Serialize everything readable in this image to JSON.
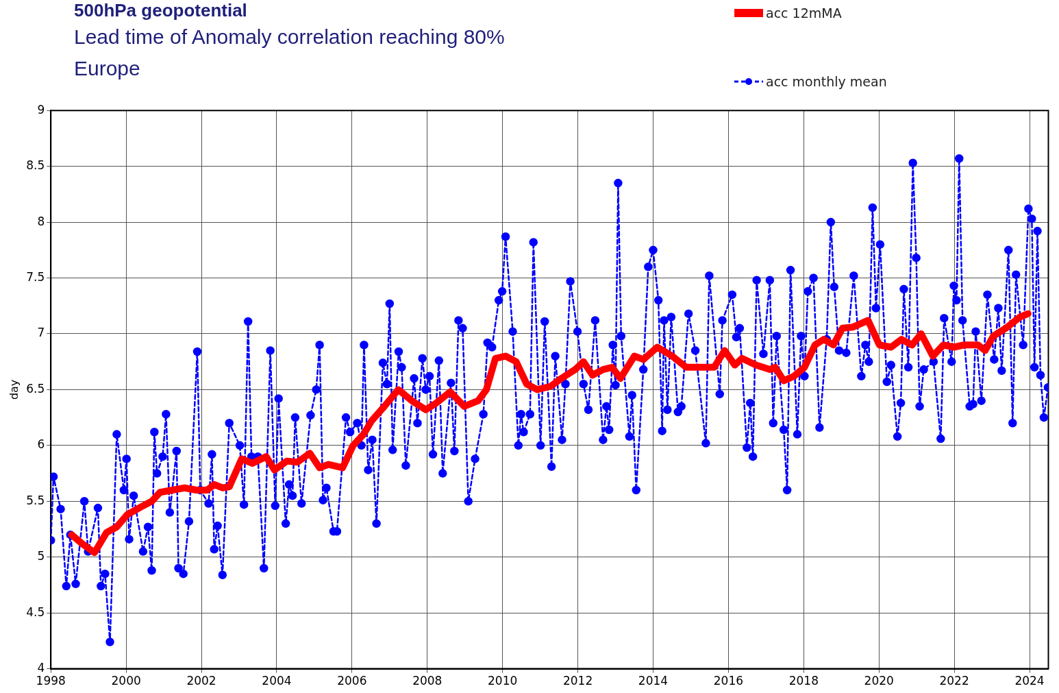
{
  "chart_data": {
    "type": "line",
    "title": "500hPa geopotential",
    "subtitle": "Lead time of Anomaly correlation reaching 80%\nEurope",
    "ylabel": "day",
    "xlim": [
      1998,
      2024.5
    ],
    "xticks": [
      1998,
      2000,
      2002,
      2004,
      2006,
      2008,
      2010,
      2012,
      2014,
      2016,
      2018,
      2020,
      2022,
      2024
    ],
    "ylim": [
      4,
      9
    ],
    "yticks": [
      4,
      4.5,
      5,
      5.5,
      6,
      6.5,
      7,
      7.5,
      8,
      8.5,
      9
    ],
    "grid": true,
    "legend": "top right",
    "series": [
      {
        "name": "acc 12mMA",
        "color": "#ff0000",
        "line_style": "solid",
        "marker": "none",
        "x": [
          1998.55,
          1998.83,
          1999.16,
          1999.48,
          1999.75,
          2000.03,
          2000.4,
          2000.68,
          2000.9,
          2001.23,
          2001.55,
          2001.87,
          2002.15,
          2002.34,
          2002.56,
          2002.74,
          2003.07,
          2003.35,
          2003.72,
          2003.94,
          2004.27,
          2004.55,
          2004.88,
          2005.14,
          2005.38,
          2005.75,
          2006.03,
          2006.31,
          2006.52,
          2006.86,
          2007.23,
          2007.59,
          2007.96,
          2008.24,
          2008.61,
          2008.98,
          2009.35,
          2009.57,
          2009.81,
          2010.08,
          2010.36,
          2010.64,
          2010.92,
          2011.28,
          2011.56,
          2011.93,
          2012.15,
          2012.39,
          2012.67,
          2012.91,
          2013.13,
          2013.5,
          2013.74,
          2014.11,
          2014.51,
          2014.88,
          2015.16,
          2015.62,
          2015.9,
          2016.17,
          2016.36,
          2016.73,
          2017.1,
          2017.24,
          2017.47,
          2017.74,
          2018.02,
          2018.3,
          2018.53,
          2018.79,
          2019.03,
          2019.31,
          2019.71,
          2020.01,
          2020.32,
          2020.6,
          2020.88,
          2021.12,
          2021.43,
          2021.71,
          2021.99,
          2022.26,
          2022.63,
          2022.82,
          2023.04,
          2023.37,
          2023.74,
          2023.96
        ],
        "values": [
          5.2,
          5.12,
          5.04,
          5.22,
          5.27,
          5.38,
          5.45,
          5.5,
          5.58,
          5.6,
          5.62,
          5.6,
          5.6,
          5.65,
          5.62,
          5.63,
          5.88,
          5.84,
          5.9,
          5.78,
          5.86,
          5.85,
          5.93,
          5.8,
          5.83,
          5.8,
          6.0,
          6.1,
          6.22,
          6.35,
          6.5,
          6.4,
          6.32,
          6.38,
          6.48,
          6.35,
          6.4,
          6.5,
          6.78,
          6.8,
          6.75,
          6.55,
          6.5,
          6.53,
          6.6,
          6.68,
          6.75,
          6.63,
          6.68,
          6.7,
          6.6,
          6.8,
          6.77,
          6.88,
          6.8,
          6.7,
          6.7,
          6.7,
          6.85,
          6.72,
          6.78,
          6.72,
          6.68,
          6.7,
          6.58,
          6.62,
          6.7,
          6.9,
          6.95,
          6.9,
          7.05,
          7.06,
          7.12,
          6.9,
          6.88,
          6.95,
          6.9,
          7.0,
          6.8,
          6.9,
          6.88,
          6.9,
          6.9,
          6.85,
          6.98,
          7.05,
          7.15,
          7.18
        ]
      },
      {
        "name": "acc monthly mean",
        "color": "#0000ff",
        "line_style": "dashed",
        "marker": "circle",
        "x": [
          1998.0,
          1998.07,
          1998.26,
          1998.41,
          1998.52,
          1998.66,
          1998.89,
          1998.99,
          1999.25,
          1999.33,
          1999.44,
          1999.57,
          1999.75,
          1999.94,
          2000.01,
          2000.08,
          2000.2,
          2000.45,
          2000.58,
          2000.68,
          2000.75,
          2000.82,
          2000.97,
          2001.06,
          2001.16,
          2001.34,
          2001.39,
          2001.52,
          2001.67,
          2001.89,
          2001.97,
          2002.19,
          2002.28,
          2002.34,
          2002.43,
          2002.56,
          2002.74,
          2003.02,
          2003.13,
          2003.24,
          2003.33,
          2003.5,
          2003.66,
          2003.83,
          2003.96,
          2004.05,
          2004.24,
          2004.33,
          2004.42,
          2004.49,
          2004.66,
          2004.9,
          2005.05,
          2005.14,
          2005.23,
          2005.32,
          2005.51,
          2005.6,
          2005.84,
          2005.95,
          2006.14,
          2006.25,
          2006.32,
          2006.43,
          2006.54,
          2006.65,
          2006.82,
          2006.93,
          2007.0,
          2007.08,
          2007.24,
          2007.32,
          2007.43,
          2007.65,
          2007.74,
          2007.87,
          2007.96,
          2008.06,
          2008.15,
          2008.31,
          2008.41,
          2008.63,
          2008.72,
          2008.83,
          2008.94,
          2009.09,
          2009.27,
          2009.49,
          2009.6,
          2009.72,
          2009.9,
          2009.99,
          2010.08,
          2010.27,
          2010.42,
          2010.49,
          2010.56,
          2010.73,
          2010.82,
          2011.01,
          2011.12,
          2011.3,
          2011.4,
          2011.58,
          2011.67,
          2011.8,
          2011.99,
          2012.15,
          2012.28,
          2012.46,
          2012.67,
          2012.76,
          2012.83,
          2012.93,
          2013.0,
          2013.07,
          2013.15,
          2013.37,
          2013.44,
          2013.55,
          2013.74,
          2013.87,
          2014.0,
          2014.14,
          2014.24,
          2014.29,
          2014.38,
          2014.48,
          2014.66,
          2014.75,
          2014.94,
          2015.12,
          2015.4,
          2015.49,
          2015.77,
          2015.84,
          2016.1,
          2016.21,
          2016.3,
          2016.49,
          2016.58,
          2016.65,
          2016.75,
          2016.93,
          2017.1,
          2017.19,
          2017.28,
          2017.47,
          2017.56,
          2017.65,
          2017.83,
          2017.93,
          2018.02,
          2018.11,
          2018.26,
          2018.42,
          2018.61,
          2018.72,
          2018.81,
          2018.94,
          2019.13,
          2019.33,
          2019.53,
          2019.64,
          2019.73,
          2019.83,
          2019.92,
          2020.03,
          2020.21,
          2020.32,
          2020.49,
          2020.58,
          2020.66,
          2020.78,
          2020.9,
          2020.99,
          2021.08,
          2021.19,
          2021.45,
          2021.64,
          2021.73,
          2021.93,
          2021.99,
          2022.06,
          2022.13,
          2022.22,
          2022.41,
          2022.5,
          2022.57,
          2022.72,
          2022.88,
          2023.06,
          2023.17,
          2023.26,
          2023.44,
          2023.55,
          2023.64,
          2023.83,
          2023.97,
          2024.06,
          2024.13,
          2024.21,
          2024.29,
          2024.38,
          2024.49
        ],
        "values": [
          5.15,
          5.72,
          5.43,
          4.74,
          5.2,
          4.76,
          5.5,
          5.05,
          5.44,
          4.74,
          4.85,
          4.24,
          6.1,
          5.6,
          5.88,
          5.16,
          5.55,
          5.05,
          5.27,
          4.88,
          6.12,
          5.75,
          5.9,
          6.28,
          5.4,
          5.95,
          4.9,
          4.85,
          5.32,
          6.84,
          5.6,
          5.48,
          5.92,
          5.07,
          5.28,
          4.84,
          6.2,
          6.0,
          5.47,
          7.11,
          5.9,
          5.9,
          4.9,
          6.85,
          5.46,
          6.42,
          5.3,
          5.65,
          5.55,
          6.25,
          5.48,
          6.27,
          6.5,
          6.9,
          5.51,
          5.62,
          5.23,
          5.23,
          6.25,
          6.12,
          6.2,
          6.0,
          6.9,
          5.78,
          6.05,
          5.3,
          6.74,
          6.55,
          7.27,
          5.96,
          6.84,
          6.7,
          5.82,
          6.6,
          6.2,
          6.78,
          6.5,
          6.62,
          5.92,
          6.76,
          5.75,
          6.56,
          5.95,
          7.12,
          7.05,
          5.5,
          5.88,
          6.28,
          6.92,
          6.88,
          7.3,
          7.38,
          7.87,
          7.02,
          6.0,
          6.28,
          6.12,
          6.28,
          7.82,
          6.0,
          7.11,
          5.81,
          6.8,
          6.05,
          6.55,
          7.47,
          7.02,
          6.55,
          6.32,
          7.12,
          6.05,
          6.35,
          6.14,
          6.9,
          6.54,
          8.35,
          6.98,
          6.08,
          6.45,
          5.6,
          6.68,
          7.6,
          7.75,
          7.3,
          6.13,
          7.12,
          6.32,
          7.15,
          6.3,
          6.35,
          7.18,
          6.85,
          6.02,
          7.52,
          6.46,
          7.12,
          7.35,
          6.97,
          7.05,
          5.98,
          6.38,
          5.9,
          7.48,
          6.82,
          7.48,
          6.2,
          6.98,
          6.14,
          5.6,
          7.57,
          6.1,
          6.98,
          6.62,
          7.38,
          7.5,
          6.16,
          6.95,
          8.0,
          7.42,
          6.85,
          6.83,
          7.52,
          6.62,
          6.9,
          6.75,
          8.13,
          7.23,
          7.8,
          6.57,
          6.72,
          6.08,
          6.38,
          7.4,
          6.7,
          8.53,
          7.68,
          6.35,
          6.68,
          6.75,
          6.06,
          7.14,
          6.75,
          7.43,
          7.3,
          8.57,
          7.12,
          6.35,
          6.37,
          7.02,
          6.4,
          7.35,
          6.77,
          7.23,
          6.67,
          7.75,
          6.2,
          7.53,
          6.9,
          8.12,
          8.03,
          6.7,
          7.92,
          6.63,
          6.25,
          6.52
        ]
      }
    ]
  }
}
